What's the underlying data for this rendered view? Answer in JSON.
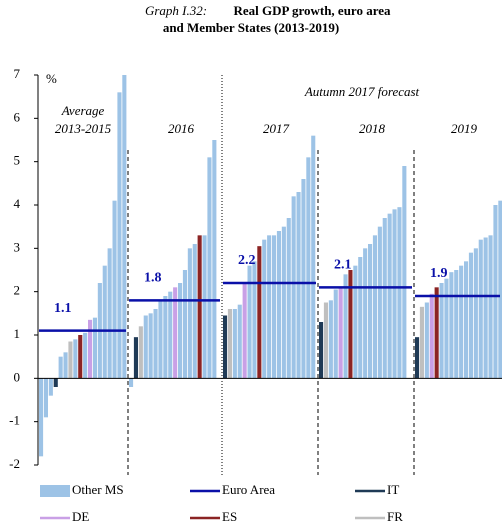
{
  "chart_data": {
    "type": "bar",
    "title_prefix": "Graph I.32:",
    "title": [
      "Real GDP growth, euro area",
      "and Member States (2013-2019)"
    ],
    "y_unit": "%",
    "annotation": "Autumn 2017 forecast",
    "ylim": [
      -2,
      7
    ],
    "yticks": [
      -2,
      -1,
      0,
      1,
      2,
      3,
      4,
      5,
      6,
      7
    ],
    "legend": [
      {
        "name": "Other MS",
        "color": "#9dc3e6",
        "marker": "rect"
      },
      {
        "name": "Euro Area",
        "color": "#0a10a8",
        "marker": "line"
      },
      {
        "name": "IT",
        "color": "#1f3a56",
        "marker": "line"
      },
      {
        "name": "DE",
        "color": "#c9a0e6",
        "marker": "line"
      },
      {
        "name": "ES",
        "color": "#8b2424",
        "marker": "line"
      },
      {
        "name": "FR",
        "color": "#bfbfbf",
        "marker": "line"
      }
    ],
    "groups": [
      {
        "label": [
          "Average",
          "2013-2015"
        ],
        "euro_area": 1.1,
        "values": [
          -1.8,
          -0.9,
          -0.4,
          -0.2,
          0.5,
          0.6,
          0.85,
          0.9,
          1.0,
          1.05,
          1.35,
          1.4,
          2.2,
          2.6,
          3.0,
          4.1,
          6.6,
          7.0
        ],
        "colors": [
          "#9dc3e6",
          "#9dc3e6",
          "#9dc3e6",
          "#1f3a56",
          "#9dc3e6",
          "#9dc3e6",
          "#bfbfbf",
          "#9dc3e6",
          "#8b2424",
          "#9dc3e6",
          "#c9a0e6",
          "#9dc3e6",
          "#9dc3e6",
          "#9dc3e6",
          "#9dc3e6",
          "#9dc3e6",
          "#9dc3e6",
          "#9dc3e6"
        ]
      },
      {
        "label": [
          "2016"
        ],
        "euro_area": 1.8,
        "values": [
          -0.2,
          0.95,
          1.2,
          1.45,
          1.5,
          1.6,
          1.8,
          1.9,
          2.0,
          2.1,
          2.2,
          2.5,
          3.0,
          3.1,
          3.3,
          3.3,
          5.1,
          5.5
        ],
        "colors": [
          "#9dc3e6",
          "#1f3a56",
          "#bfbfbf",
          "#9dc3e6",
          "#9dc3e6",
          "#9dc3e6",
          "#9dc3e6",
          "#9dc3e6",
          "#9dc3e6",
          "#c9a0e6",
          "#9dc3e6",
          "#9dc3e6",
          "#9dc3e6",
          "#9dc3e6",
          "#8b2424",
          "#9dc3e6",
          "#9dc3e6",
          "#9dc3e6"
        ]
      },
      {
        "label": [
          "2017"
        ],
        "euro_area": 2.2,
        "values": [
          1.45,
          1.6,
          1.6,
          1.7,
          2.2,
          2.6,
          2.7,
          3.05,
          3.2,
          3.3,
          3.3,
          3.4,
          3.5,
          3.7,
          4.2,
          4.3,
          4.6,
          5.1,
          5.6
        ],
        "colors": [
          "#1f3a56",
          "#bfbfbf",
          "#9dc3e6",
          "#9dc3e6",
          "#c9a0e6",
          "#9dc3e6",
          "#9dc3e6",
          "#8b2424",
          "#9dc3e6",
          "#9dc3e6",
          "#9dc3e6",
          "#9dc3e6",
          "#9dc3e6",
          "#9dc3e6",
          "#9dc3e6",
          "#9dc3e6",
          "#9dc3e6",
          "#9dc3e6",
          "#9dc3e6"
        ]
      },
      {
        "label": [
          "2018"
        ],
        "euro_area": 2.1,
        "values": [
          1.3,
          1.75,
          1.8,
          2.05,
          2.1,
          2.4,
          2.5,
          2.6,
          2.8,
          3.0,
          3.1,
          3.3,
          3.5,
          3.7,
          3.8,
          3.9,
          3.95,
          4.9
        ],
        "colors": [
          "#1f3a56",
          "#bfbfbf",
          "#9dc3e6",
          "#9dc3e6",
          "#c9a0e6",
          "#9dc3e6",
          "#8b2424",
          "#9dc3e6",
          "#9dc3e6",
          "#9dc3e6",
          "#9dc3e6",
          "#9dc3e6",
          "#9dc3e6",
          "#9dc3e6",
          "#9dc3e6",
          "#9dc3e6",
          "#9dc3e6",
          "#9dc3e6"
        ]
      },
      {
        "label": [
          "2019"
        ],
        "euro_area": 1.9,
        "values": [
          0.95,
          1.65,
          1.75,
          1.95,
          2.1,
          2.2,
          2.3,
          2.45,
          2.5,
          2.6,
          2.7,
          2.9,
          3.0,
          3.2,
          3.25,
          3.3,
          4.0,
          4.1
        ],
        "colors": [
          "#1f3a56",
          "#bfbfbf",
          "#9dc3e6",
          "#c9a0e6",
          "#8b2424",
          "#9dc3e6",
          "#9dc3e6",
          "#9dc3e6",
          "#9dc3e6",
          "#9dc3e6",
          "#9dc3e6",
          "#9dc3e6",
          "#9dc3e6",
          "#9dc3e6",
          "#9dc3e6",
          "#9dc3e6",
          "#9dc3e6",
          "#9dc3e6"
        ]
      }
    ]
  }
}
